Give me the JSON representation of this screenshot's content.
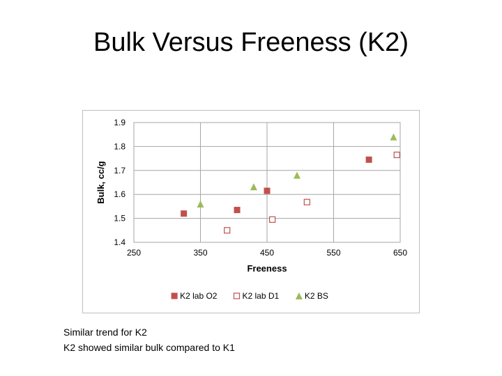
{
  "slide": {
    "title": "Bulk  Versus Freeness (K2)",
    "notes": [
      "Similar trend for K2",
      "K2 showed similar bulk compared to K1"
    ]
  },
  "chart_data": {
    "type": "scatter",
    "title": "",
    "xlabel": "Freeness",
    "ylabel": "Bulk, cc/g",
    "xlim": [
      250,
      650
    ],
    "ylim": [
      1.4,
      1.9
    ],
    "xticks": [
      250,
      350,
      450,
      550,
      650
    ],
    "yticks": [
      1.4,
      1.5,
      1.6,
      1.7,
      1.8,
      1.9
    ],
    "grid": true,
    "legend_position": "bottom",
    "series": [
      {
        "name": "K2 lab O2",
        "marker": "filled-square",
        "color": "#c0504d",
        "points": [
          [
            325,
            1.52
          ],
          [
            405,
            1.535
          ],
          [
            450,
            1.615
          ],
          [
            603,
            1.745
          ]
        ]
      },
      {
        "name": "K2 lab D1",
        "marker": "open-square",
        "color": "#c0504d",
        "points": [
          [
            390,
            1.45
          ],
          [
            458,
            1.495
          ],
          [
            510,
            1.568
          ],
          [
            645,
            1.765
          ]
        ]
      },
      {
        "name": "K2 BS",
        "marker": "triangle",
        "color": "#9bbb59",
        "points": [
          [
            350,
            1.56
          ],
          [
            430,
            1.632
          ],
          [
            495,
            1.68
          ],
          [
            640,
            1.84
          ]
        ]
      }
    ]
  }
}
